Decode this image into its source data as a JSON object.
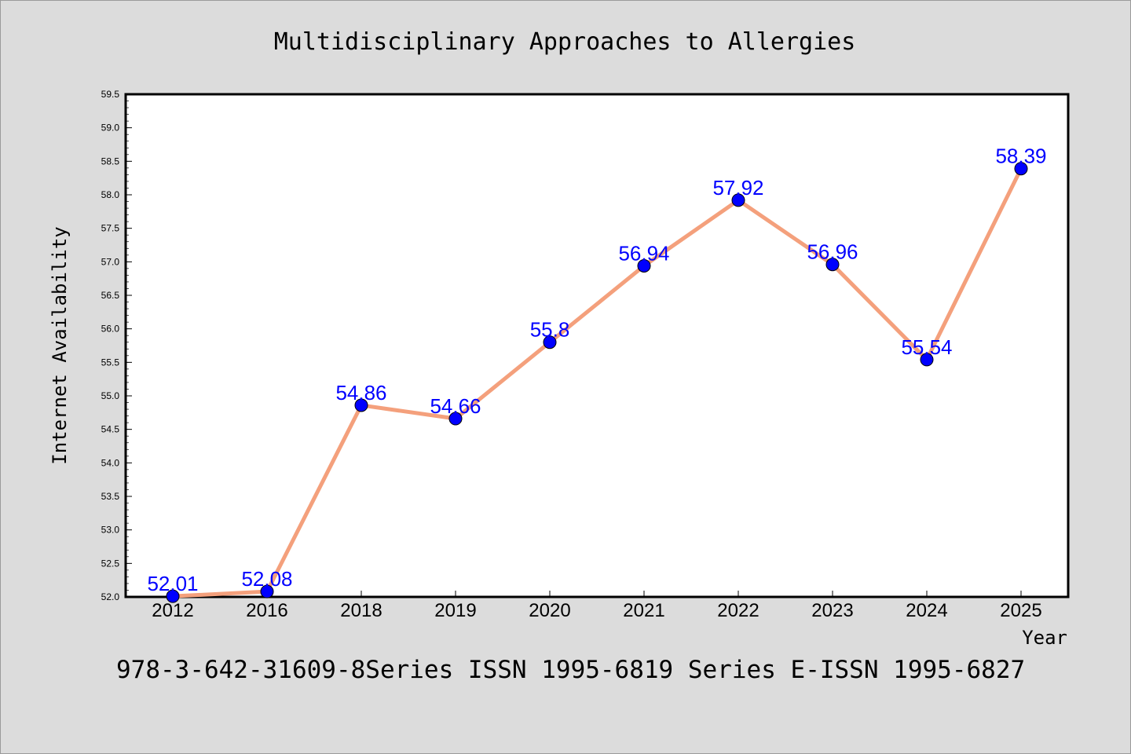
{
  "chart_data": {
    "type": "line",
    "title": "Multidisciplinary Approaches to Allergies",
    "xlabel": "Year",
    "ylabel": "Internet Availability",
    "categories": [
      "2012",
      "2016",
      "2018",
      "2019",
      "2020",
      "2021",
      "2022",
      "2023",
      "2024",
      "2025"
    ],
    "series": [
      {
        "values": [
          52.01,
          52.08,
          54.86,
          54.66,
          55.8,
          56.94,
          57.92,
          56.96,
          55.54,
          58.39
        ],
        "labels": [
          "52.01",
          "52.08",
          "54.86",
          "54.66",
          "55.8",
          "56.94",
          "57.92",
          "56.96",
          "55.54",
          "58.39"
        ],
        "line_color": "#f4a07c",
        "marker_color": "#0000ff"
      }
    ],
    "ylim": [
      52.0,
      59.5
    ],
    "yticks": [
      "52.0",
      "52.5",
      "53.0",
      "53.5",
      "54.0",
      "54.5",
      "55.0",
      "55.5",
      "56.0",
      "56.5",
      "57.0",
      "57.5",
      "58.0",
      "58.5",
      "59.0",
      "59.5"
    ],
    "grid": false,
    "legend": "none"
  },
  "footer": "978-3-642-31609-8Series ISSN 1995-6819 Series E-ISSN 1995-6827",
  "colors": {
    "background": "#dcdcdc",
    "plot_background": "#ffffff",
    "data_label": "#0000ff"
  }
}
